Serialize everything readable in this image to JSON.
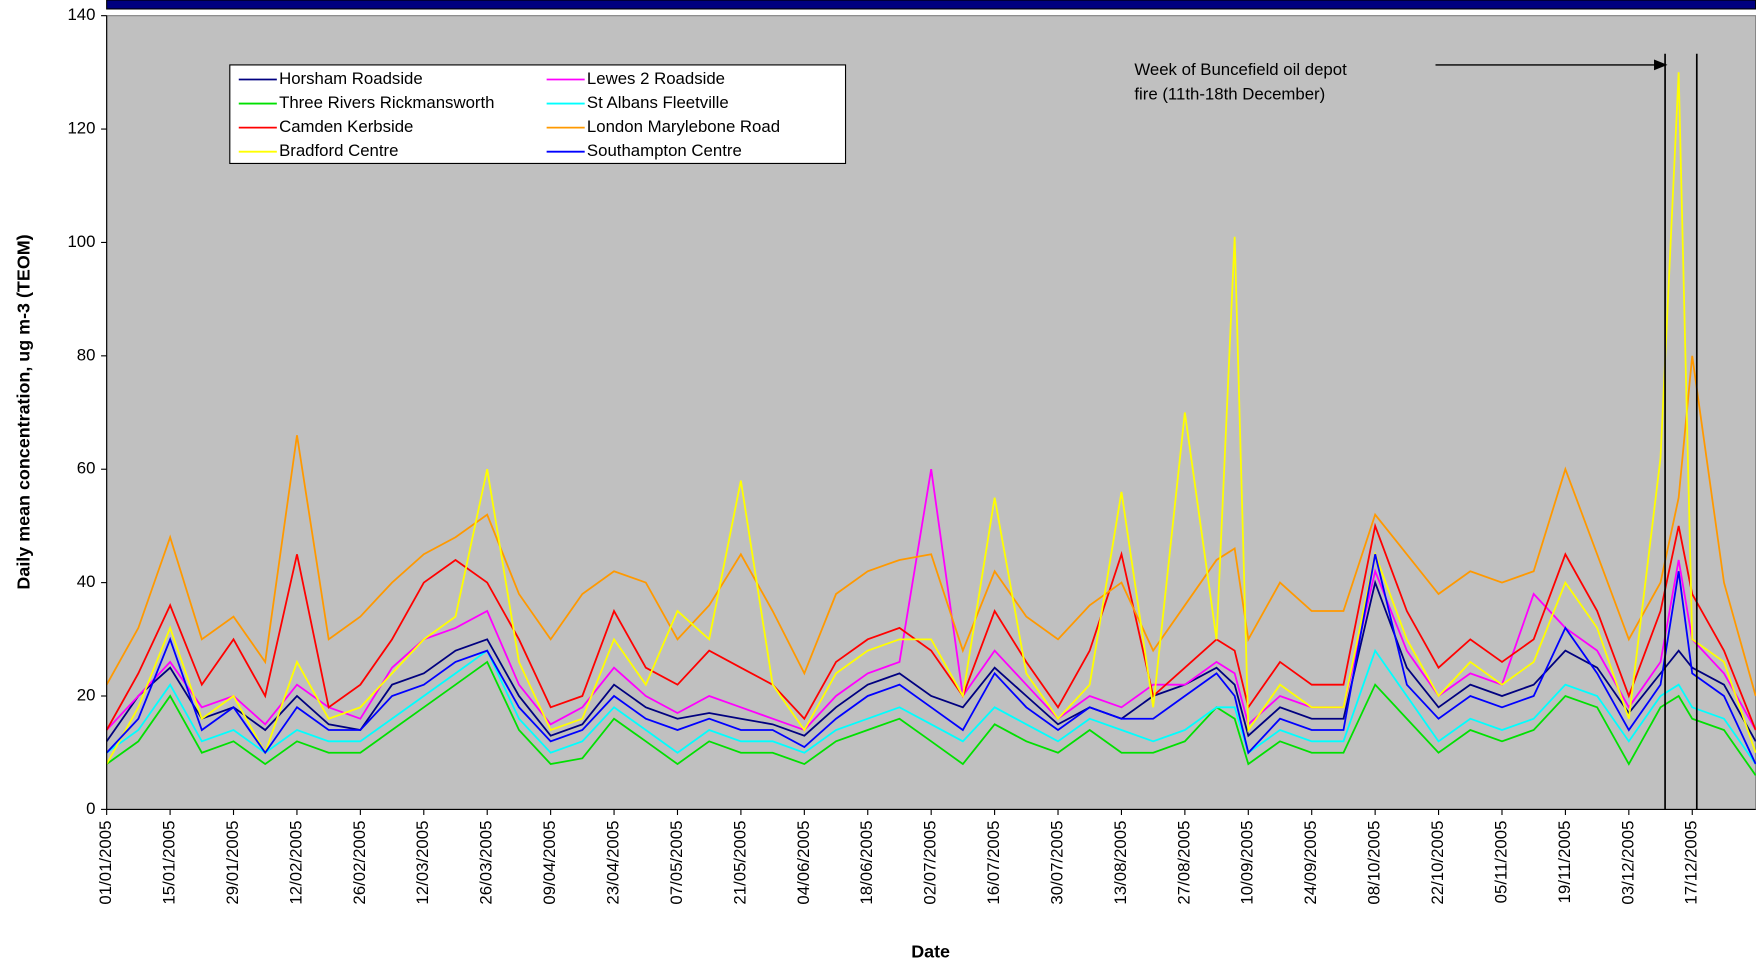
{
  "chart_data": {
    "type": "line",
    "y_label": "Daily mean concentration, ug m-3 (TEOM)",
    "x_label": "Date",
    "annotation": {
      "text": [
        "Week of Buncefield oil depot",
        "fire (11th-18th December)"
      ],
      "vlines": [
        "11/12/2005",
        "18/12/2005"
      ]
    },
    "xlim": [
      "01/01/2005",
      "31/12/2005"
    ],
    "xticks": [
      "01/01/2005",
      "15/01/2005",
      "29/01/2005",
      "12/02/2005",
      "26/02/2005",
      "12/03/2005",
      "26/03/2005",
      "09/04/2005",
      "23/04/2005",
      "07/05/2005",
      "21/05/2005",
      "04/06/2005",
      "18/06/2005",
      "02/07/2005",
      "16/07/2005",
      "30/07/2005",
      "13/08/2005",
      "27/08/2005",
      "10/09/2005",
      "24/09/2005",
      "08/10/2005",
      "22/10/2005",
      "05/11/2005",
      "19/11/2005",
      "03/12/2005",
      "17/12/2005"
    ],
    "ylim": [
      0,
      140
    ],
    "yticks": [
      0,
      20,
      40,
      60,
      80,
      100,
      120,
      140
    ],
    "x": [
      "01/01/2005",
      "08/01/2005",
      "15/01/2005",
      "22/01/2005",
      "29/01/2005",
      "05/02/2005",
      "12/02/2005",
      "19/02/2005",
      "26/02/2005",
      "05/03/2005",
      "12/03/2005",
      "19/03/2005",
      "26/03/2005",
      "02/04/2005",
      "09/04/2005",
      "16/04/2005",
      "23/04/2005",
      "30/04/2005",
      "07/05/2005",
      "14/05/2005",
      "21/05/2005",
      "28/05/2005",
      "04/06/2005",
      "11/06/2005",
      "18/06/2005",
      "25/06/2005",
      "02/07/2005",
      "09/07/2005",
      "16/07/2005",
      "23/07/2005",
      "30/07/2005",
      "06/08/2005",
      "13/08/2005",
      "20/08/2005",
      "27/08/2005",
      "03/09/2005",
      "07/09/2005",
      "10/09/2005",
      "17/09/2005",
      "24/09/2005",
      "01/10/2005",
      "08/10/2005",
      "15/10/2005",
      "22/10/2005",
      "29/10/2005",
      "05/11/2005",
      "12/11/2005",
      "19/11/2005",
      "26/11/2005",
      "03/12/2005",
      "10/12/2005",
      "14/12/2005",
      "17/12/2005",
      "24/12/2005",
      "31/12/2005"
    ],
    "series": [
      {
        "name": "Horsham Roadside",
        "color": "#000080",
        "values": [
          12,
          20,
          25,
          16,
          18,
          14,
          20,
          15,
          14,
          22,
          24,
          28,
          30,
          20,
          13,
          15,
          22,
          18,
          16,
          17,
          16,
          15,
          13,
          18,
          22,
          24,
          20,
          18,
          25,
          20,
          15,
          18,
          16,
          20,
          22,
          25,
          22,
          13,
          18,
          16,
          16,
          40,
          25,
          18,
          22,
          20,
          22,
          28,
          25,
          17,
          24,
          28,
          25,
          22,
          12
        ]
      },
      {
        "name": "Lewes 2 Roadside",
        "color": "#ff00ff",
        "values": [
          14,
          20,
          26,
          18,
          20,
          15,
          22,
          18,
          16,
          25,
          30,
          32,
          35,
          22,
          15,
          18,
          25,
          20,
          17,
          20,
          18,
          16,
          14,
          20,
          24,
          26,
          60,
          20,
          28,
          22,
          16,
          20,
          18,
          22,
          22,
          26,
          24,
          15,
          20,
          18,
          18,
          42,
          28,
          20,
          24,
          22,
          38,
          32,
          28,
          18,
          26,
          44,
          30,
          24,
          14
        ]
      },
      {
        "name": "Three Rivers Rickmansworth",
        "color": "#00e000",
        "values": [
          8,
          12,
          20,
          10,
          12,
          8,
          12,
          10,
          10,
          14,
          18,
          22,
          26,
          14,
          8,
          9,
          16,
          12,
          8,
          12,
          10,
          10,
          8,
          12,
          14,
          16,
          12,
          8,
          15,
          12,
          10,
          14,
          10,
          10,
          12,
          18,
          16,
          8,
          12,
          10,
          10,
          22,
          16,
          10,
          14,
          12,
          14,
          20,
          18,
          8,
          18,
          20,
          16,
          14,
          6
        ]
      },
      {
        "name": "St Albans Fleetville",
        "color": "#00ffff",
        "values": [
          10,
          14,
          22,
          12,
          14,
          10,
          14,
          12,
          12,
          16,
          20,
          24,
          28,
          16,
          10,
          12,
          18,
          14,
          10,
          14,
          12,
          12,
          10,
          14,
          16,
          18,
          15,
          12,
          18,
          15,
          12,
          16,
          14,
          12,
          14,
          18,
          18,
          10,
          14,
          12,
          12,
          28,
          20,
          12,
          16,
          14,
          16,
          22,
          20,
          12,
          20,
          22,
          18,
          16,
          8
        ]
      },
      {
        "name": "Camden Kerbside",
        "color": "#ff0000",
        "values": [
          14,
          24,
          36,
          22,
          30,
          20,
          45,
          18,
          22,
          30,
          40,
          44,
          40,
          30,
          18,
          20,
          35,
          25,
          22,
          28,
          25,
          22,
          16,
          26,
          30,
          32,
          28,
          20,
          35,
          26,
          18,
          28,
          45,
          20,
          25,
          30,
          28,
          18,
          26,
          22,
          22,
          50,
          35,
          25,
          30,
          26,
          30,
          45,
          35,
          20,
          35,
          50,
          38,
          28,
          14
        ]
      },
      {
        "name": "London Marylebone Road",
        "color": "#ff9900",
        "values": [
          22,
          32,
          48,
          30,
          34,
          26,
          66,
          30,
          34,
          40,
          45,
          48,
          52,
          38,
          30,
          38,
          42,
          40,
          30,
          36,
          45,
          35,
          24,
          38,
          42,
          44,
          45,
          28,
          42,
          34,
          30,
          36,
          40,
          28,
          36,
          44,
          46,
          30,
          40,
          35,
          35,
          52,
          45,
          38,
          42,
          40,
          42,
          60,
          45,
          30,
          40,
          55,
          80,
          40,
          20
        ]
      },
      {
        "name": "Bradford Centre",
        "color": "#ffff00",
        "values": [
          8,
          18,
          32,
          16,
          20,
          10,
          26,
          16,
          18,
          24,
          30,
          34,
          60,
          26,
          14,
          16,
          30,
          22,
          35,
          30,
          58,
          22,
          14,
          24,
          28,
          30,
          30,
          20,
          55,
          24,
          16,
          22,
          56,
          18,
          70,
          30,
          101,
          14,
          22,
          18,
          18,
          45,
          30,
          20,
          26,
          22,
          26,
          40,
          32,
          16,
          62,
          130,
          30,
          26,
          10
        ]
      },
      {
        "name": "Southampton Centre",
        "color": "#0000ff",
        "values": [
          10,
          16,
          30,
          14,
          18,
          10,
          18,
          14,
          14,
          20,
          22,
          26,
          28,
          18,
          12,
          14,
          20,
          16,
          14,
          16,
          14,
          14,
          11,
          16,
          20,
          22,
          18,
          14,
          24,
          18,
          14,
          18,
          16,
          16,
          20,
          24,
          20,
          10,
          16,
          14,
          14,
          45,
          22,
          16,
          20,
          18,
          20,
          32,
          24,
          14,
          22,
          42,
          24,
          20,
          8
        ]
      }
    ]
  }
}
